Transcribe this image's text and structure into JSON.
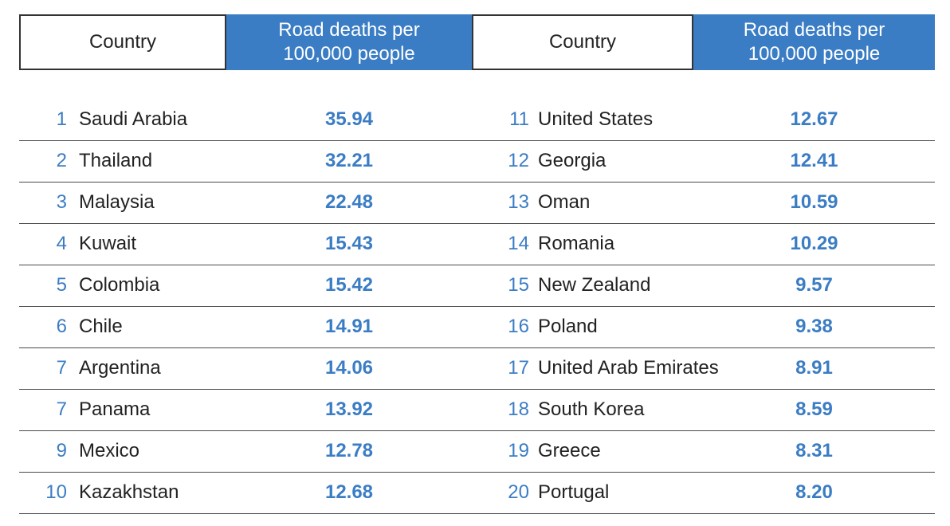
{
  "table": {
    "header": {
      "country_label": "Country",
      "metric_label": "Road deaths per 100,000 people"
    },
    "left_rows": [
      {
        "rank": "1",
        "country": "Saudi Arabia",
        "value": "35.94"
      },
      {
        "rank": "2",
        "country": "Thailand",
        "value": "32.21"
      },
      {
        "rank": "3",
        "country": "Malaysia",
        "value": "22.48"
      },
      {
        "rank": "4",
        "country": "Kuwait",
        "value": "15.43"
      },
      {
        "rank": "5",
        "country": "Colombia",
        "value": "15.42"
      },
      {
        "rank": "6",
        "country": "Chile",
        "value": "14.91"
      },
      {
        "rank": "7",
        "country": "Argentina",
        "value": "14.06"
      },
      {
        "rank": "7",
        "country": "Panama",
        "value": "13.92"
      },
      {
        "rank": "9",
        "country": "Mexico",
        "value": "12.78"
      },
      {
        "rank": "10",
        "country": "Kazakhstan",
        "value": "12.68"
      }
    ],
    "right_rows": [
      {
        "rank": "11",
        "country": "United States",
        "value": "12.67"
      },
      {
        "rank": "12",
        "country": "Georgia",
        "value": "12.41"
      },
      {
        "rank": "13",
        "country": "Oman",
        "value": "10.59"
      },
      {
        "rank": "14",
        "country": "Romania",
        "value": "10.29"
      },
      {
        "rank": "15",
        "country": "New Zealand",
        "value": "9.57"
      },
      {
        "rank": "16",
        "country": "Poland",
        "value": "9.38"
      },
      {
        "rank": "17",
        "country": "United Arab Emirates",
        "value": "8.91"
      },
      {
        "rank": "18",
        "country": "South Korea",
        "value": "8.59"
      },
      {
        "rank": "19",
        "country": "Greece",
        "value": "8.31"
      },
      {
        "rank": "20",
        "country": "Portugal",
        "value": "8.20"
      }
    ]
  },
  "colors": {
    "accent": "#3b7dc4",
    "text": "#222222",
    "rule": "#4a4a4a"
  },
  "chart_data": {
    "type": "table",
    "columns": [
      "Country",
      "Road deaths per 100,000 people"
    ],
    "rows": [
      {
        "rank": 1,
        "country": "Saudi Arabia",
        "value": 35.94
      },
      {
        "rank": 2,
        "country": "Thailand",
        "value": 32.21
      },
      {
        "rank": 3,
        "country": "Malaysia",
        "value": 22.48
      },
      {
        "rank": 4,
        "country": "Kuwait",
        "value": 15.43
      },
      {
        "rank": 5,
        "country": "Colombia",
        "value": 15.42
      },
      {
        "rank": 6,
        "country": "Chile",
        "value": 14.91
      },
      {
        "rank": 7,
        "country": "Argentina",
        "value": 14.06
      },
      {
        "rank": 7,
        "country": "Panama",
        "value": 13.92
      },
      {
        "rank": 9,
        "country": "Mexico",
        "value": 12.78
      },
      {
        "rank": 10,
        "country": "Kazakhstan",
        "value": 12.68
      },
      {
        "rank": 11,
        "country": "United States",
        "value": 12.67
      },
      {
        "rank": 12,
        "country": "Georgia",
        "value": 12.41
      },
      {
        "rank": 13,
        "country": "Oman",
        "value": 10.59
      },
      {
        "rank": 14,
        "country": "Romania",
        "value": 10.29
      },
      {
        "rank": 15,
        "country": "New Zealand",
        "value": 9.57
      },
      {
        "rank": 16,
        "country": "Poland",
        "value": 9.38
      },
      {
        "rank": 17,
        "country": "United Arab Emirates",
        "value": 8.91
      },
      {
        "rank": 18,
        "country": "South Korea",
        "value": 8.59
      },
      {
        "rank": 19,
        "country": "Greece",
        "value": 8.31
      },
      {
        "rank": 20,
        "country": "Portugal",
        "value": 8.2
      }
    ]
  }
}
